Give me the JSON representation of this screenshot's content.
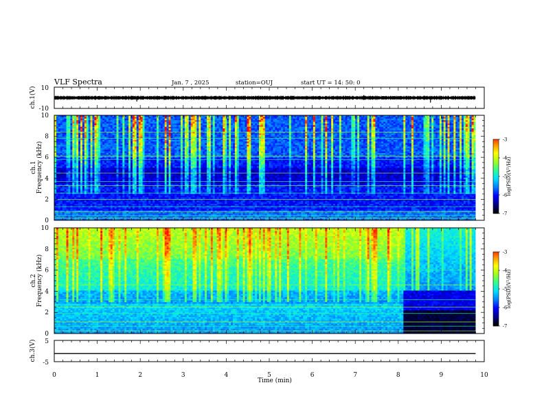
{
  "header": {
    "title": "VLF Spectra",
    "date": "Jan. 7 , 2025",
    "station": "station=OUJ",
    "start": "start UT = 14: 50: 0"
  },
  "chart_data": [
    {
      "type": "line",
      "id": "ch1-waveform",
      "ylabel": "ch.1(V)",
      "ylim": [
        -10,
        10
      ],
      "ytick_labels": [
        "10",
        "-10"
      ],
      "xlim": [
        0,
        10
      ],
      "trace_level": 0,
      "data_end_min": 9.8,
      "spikes": [
        {
          "t": 1.92,
          "v": -3.5
        },
        {
          "t": 7.2,
          "v": 2.5
        },
        {
          "t": 8.75,
          "v": -4.5
        }
      ]
    },
    {
      "type": "heatmap",
      "id": "ch1-spectrogram",
      "ylabel_line1": "ch.1",
      "ylabel_line2": "Frequency (kHz)",
      "ylim": [
        0,
        10
      ],
      "ytick_labels": [
        "0",
        "2",
        "4",
        "6",
        "8",
        "10"
      ],
      "xlim": [
        0,
        10
      ],
      "data_end_min": 9.8,
      "colorbar": {
        "label": "log(PSD)(V²/Hz)",
        "range": [
          -7,
          -3
        ],
        "tick_labels": [
          "-3",
          "-4",
          "-5",
          "-6",
          "-7"
        ]
      }
    },
    {
      "type": "heatmap",
      "id": "ch2-spectrogram",
      "ylabel_line1": "ch.2",
      "ylabel_line2": "Frequency (kHz)",
      "ylim": [
        0,
        10
      ],
      "ytick_labels": [
        "0",
        "2",
        "4",
        "6",
        "8",
        "10"
      ],
      "xlim": [
        0,
        10
      ],
      "data_end_min": 9.8,
      "change_min": 8.1,
      "colorbar": {
        "label": "log(PSD)(V²/Hz)",
        "range": [
          -7,
          -3
        ],
        "tick_labels": [
          "-3",
          "-4",
          "-5",
          "-6",
          "-7"
        ]
      }
    },
    {
      "type": "line",
      "id": "ch3-waveform",
      "ylabel": "ch.3(V)",
      "ylim": [
        -5,
        5
      ],
      "ytick_labels": [
        "5",
        "-5"
      ],
      "xlim": [
        0,
        10
      ],
      "trace_level": -1.2,
      "data_end_min": 9.8,
      "xlabel": "Time (min)",
      "xtick_labels": [
        "0",
        "1",
        "2",
        "3",
        "4",
        "5",
        "6",
        "7",
        "8",
        "9",
        "10"
      ]
    }
  ],
  "colors": {
    "background": "#ffffff",
    "frame": "#000000",
    "colormap": [
      "#000000",
      "#00008a",
      "#0000ff",
      "#0080ff",
      "#00e0ff",
      "#30ff90",
      "#a0ff20",
      "#ffff00",
      "#ff9000",
      "#ff0000",
      "#ffffff"
    ]
  }
}
